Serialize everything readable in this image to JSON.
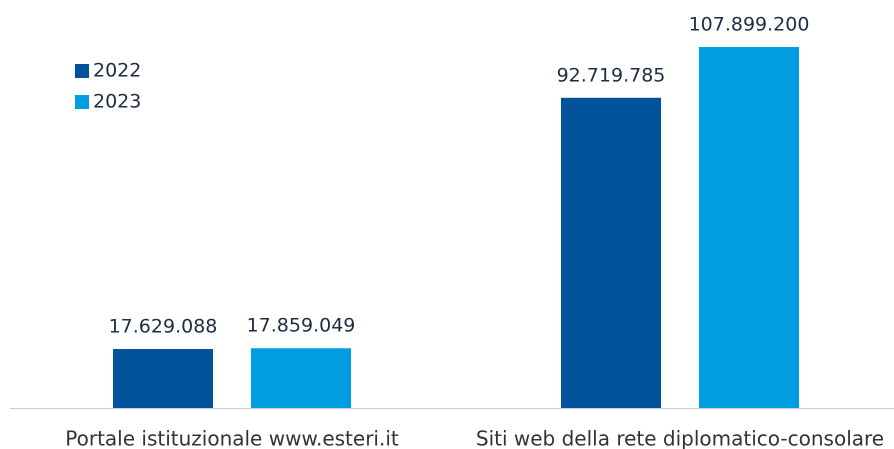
{
  "chart_data": {
    "type": "bar",
    "categories": [
      "Portale istituzionale www.esteri.it",
      "Siti web della rete diplomatico-consolare"
    ],
    "series": [
      {
        "name": "2022",
        "color": "#00529b",
        "values": [
          17629088,
          92719785
        ],
        "value_labels": [
          "17.629.088",
          "92.719.785"
        ]
      },
      {
        "name": "2023",
        "color": "#009ee0",
        "values": [
          17859049,
          107899200
        ],
        "value_labels": [
          "17.859.049",
          "107.899.200"
        ]
      }
    ],
    "legend": "top-left"
  }
}
